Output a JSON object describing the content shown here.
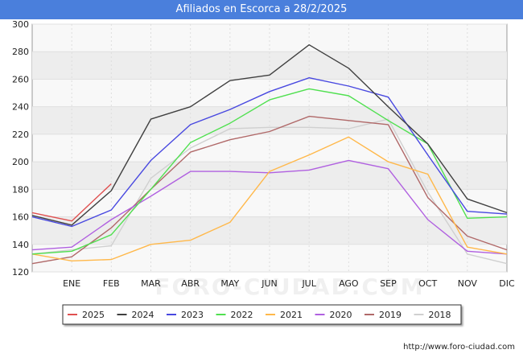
{
  "page": {
    "title": "Afiliados en Escorca a 28/2/2025",
    "footer": "http://www.foro-ciudad.com",
    "watermark": "FORO-CIUDAD.COM"
  },
  "chart_data": {
    "type": "line",
    "title": "Afiliados en Escorca a 28/2/2025",
    "xlabel": "",
    "ylabel": "",
    "categories": [
      "",
      "ENE",
      "FEB",
      "MAR",
      "ABR",
      "MAY",
      "JUN",
      "JUL",
      "AGO",
      "SEP",
      "OCT",
      "NOV",
      "DIC"
    ],
    "ylim": [
      120,
      300
    ],
    "yticks": [
      120,
      140,
      160,
      180,
      200,
      220,
      240,
      260,
      280,
      300
    ],
    "grid": true,
    "legend_position": "bottom",
    "series": [
      {
        "name": "2025",
        "color": "#e05050",
        "values": [
          163,
          157,
          184,
          null,
          null,
          null,
          null,
          null,
          null,
          null,
          null,
          null,
          null
        ]
      },
      {
        "name": "2024",
        "color": "#404040",
        "values": [
          161,
          154,
          179,
          231,
          240,
          259,
          263,
          285,
          268,
          240,
          213,
          173,
          163
        ]
      },
      {
        "name": "2023",
        "color": "#4848e0",
        "values": [
          160,
          153,
          165,
          201,
          227,
          238,
          251,
          261,
          255,
          247,
          205,
          164,
          162
        ]
      },
      {
        "name": "2022",
        "color": "#50e050",
        "values": [
          133,
          135,
          147,
          180,
          214,
          228,
          245,
          253,
          248,
          230,
          213,
          159,
          160
        ]
      },
      {
        "name": "2021",
        "color": "#ffb84a",
        "values": [
          133,
          128,
          129,
          140,
          143,
          156,
          193,
          205,
          218,
          200,
          191,
          138,
          133
        ]
      },
      {
        "name": "2020",
        "color": "#b060e0",
        "values": [
          136,
          138,
          158,
          175,
          193,
          193,
          192,
          194,
          201,
          195,
          158,
          135,
          133
        ]
      },
      {
        "name": "2019",
        "color": "#b06868",
        "values": [
          126,
          131,
          152,
          180,
          207,
          216,
          222,
          233,
          230,
          227,
          174,
          146,
          136
        ]
      },
      {
        "name": "2018",
        "color": "#d0d0d0",
        "values": [
          133,
          136,
          139,
          188,
          210,
          224,
          225,
          225,
          224,
          231,
          178,
          133,
          126
        ]
      }
    ]
  }
}
